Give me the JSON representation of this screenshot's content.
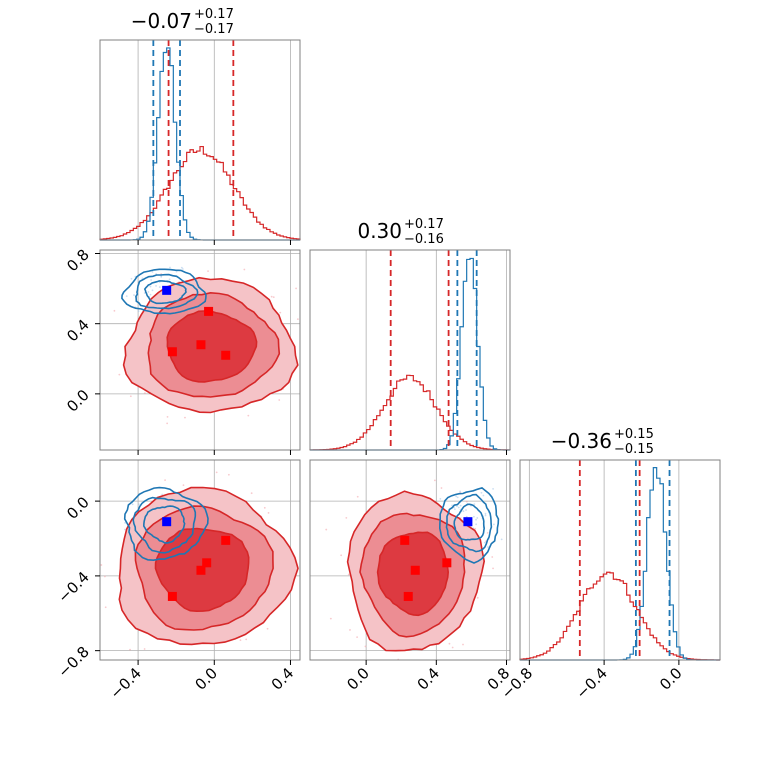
{
  "chart_data": {
    "type": "corner",
    "colors": {
      "red": "#d62728",
      "blue": "#1f77b4",
      "red_marker": "#ff0000",
      "blue_marker": "#0000ff"
    },
    "parameters": [
      {
        "title_main": "−0.07",
        "title_sup": "+0.17",
        "title_sub": "−0.17",
        "range": [
          -0.6,
          0.45
        ],
        "ticks": [
          -0.4,
          0.0,
          0.4
        ],
        "tick_labels": [
          "−0.4",
          "0.0",
          "0.4"
        ],
        "quantiles_red": [
          -0.24,
          0.1
        ],
        "quantiles_blue": [
          -0.32,
          -0.18
        ],
        "hist_red": {
          "mean": -0.07,
          "sd": 0.17,
          "peak": 0.45
        },
        "hist_blue": {
          "mean": -0.25,
          "sd": 0.045,
          "peak": 0.98
        }
      },
      {
        "title_main": "0.30",
        "title_sup": "+0.17",
        "title_sub": "−0.16",
        "range": [
          -0.32,
          0.82
        ],
        "ticks": [
          0.0,
          0.4,
          0.8
        ],
        "tick_labels": [
          "0.0",
          "0.4",
          "0.8"
        ],
        "quantiles_red": [
          0.14,
          0.47
        ],
        "quantiles_blue": [
          0.52,
          0.63
        ],
        "hist_red": {
          "mean": 0.25,
          "sd": 0.15,
          "peak": 0.36
        },
        "hist_blue": {
          "mean": 0.59,
          "sd": 0.045,
          "peak": 0.97
        }
      },
      {
        "title_main": "−0.36",
        "title_sup": "+0.15",
        "title_sub": "−0.15",
        "range": [
          -0.85,
          0.22
        ],
        "ticks": [
          -0.8,
          -0.4,
          0.0
        ],
        "tick_labels": [
          "−0.8",
          "−0.4",
          "0.0"
        ],
        "quantiles_red": [
          -0.53,
          -0.21
        ],
        "quantiles_blue": [
          -0.23,
          -0.05
        ],
        "hist_red": {
          "mean": -0.38,
          "sd": 0.15,
          "peak": 0.44
        },
        "hist_blue": {
          "mean": -0.12,
          "sd": 0.05,
          "peak": 0.98
        }
      }
    ],
    "pairs": [
      {
        "x": 0,
        "y": 1,
        "red_center": [
          -0.02,
          0.27
        ],
        "red_spread": [
          0.22,
          0.19
        ],
        "blue_center": [
          -0.26,
          0.58
        ],
        "blue_spread": [
          0.1,
          0.06
        ],
        "red_markers": [
          [
            -0.22,
            0.24
          ],
          [
            -0.07,
            0.28
          ],
          [
            0.06,
            0.22
          ],
          [
            -0.03,
            0.47
          ]
        ],
        "blue_markers": [
          [
            -0.25,
            0.59
          ]
        ]
      },
      {
        "x": 0,
        "y": 2,
        "red_center": [
          -0.06,
          -0.36
        ],
        "red_spread": [
          0.23,
          0.21
        ],
        "blue_center": [
          -0.26,
          -0.12
        ],
        "blue_spread": [
          0.1,
          0.09
        ],
        "red_markers": [
          [
            -0.22,
            -0.51
          ],
          [
            -0.07,
            -0.37
          ],
          [
            -0.04,
            -0.33
          ],
          [
            0.06,
            -0.21
          ]
        ],
        "blue_markers": [
          [
            -0.25,
            -0.11
          ]
        ]
      },
      {
        "x": 1,
        "y": 2,
        "red_center": [
          0.27,
          -0.38
        ],
        "red_spread": [
          0.19,
          0.21
        ],
        "blue_center": [
          0.59,
          -0.12
        ],
        "blue_spread": [
          0.08,
          0.09
        ],
        "red_markers": [
          [
            0.22,
            -0.21
          ],
          [
            0.28,
            -0.37
          ],
          [
            0.46,
            -0.33
          ],
          [
            0.24,
            -0.51
          ]
        ],
        "blue_markers": [
          [
            0.58,
            -0.11
          ]
        ]
      }
    ]
  }
}
